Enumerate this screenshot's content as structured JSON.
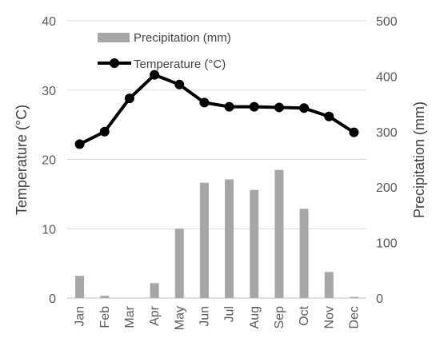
{
  "chart_data": {
    "type": "bar+line",
    "categories": [
      "Jan",
      "Feb",
      "Mar",
      "Apr",
      "May",
      "Jun",
      "Jul",
      "Aug",
      "Sep",
      "Oct",
      "Nov",
      "Dec"
    ],
    "series": [
      {
        "name": "Precipitation (mm)",
        "type": "bar",
        "axis": "right",
        "values": [
          40,
          4,
          0,
          27,
          125,
          208,
          214,
          195,
          231,
          161,
          47,
          2
        ]
      },
      {
        "name": "Temperature (°C)",
        "type": "line",
        "axis": "left",
        "values": [
          22.2,
          24.0,
          28.8,
          32.2,
          30.8,
          28.2,
          27.6,
          27.6,
          27.5,
          27.4,
          26.2,
          23.9
        ]
      }
    ],
    "ylabel_left": "Temperature (°C)",
    "ylabel_right": "Precipitation (mm)",
    "ylim_left": [
      0,
      40
    ],
    "ylim_right": [
      0,
      500
    ],
    "yticks_left": [
      "0",
      "10",
      "20",
      "30",
      "40"
    ],
    "yticks_right": [
      "0",
      "100",
      "200",
      "300",
      "400",
      "500"
    ],
    "grid": "horizontal",
    "legend_position": "top-left",
    "colors": {
      "bar": "#a6a6a6",
      "line": "#000000",
      "grid": "#d9d9d9"
    }
  }
}
